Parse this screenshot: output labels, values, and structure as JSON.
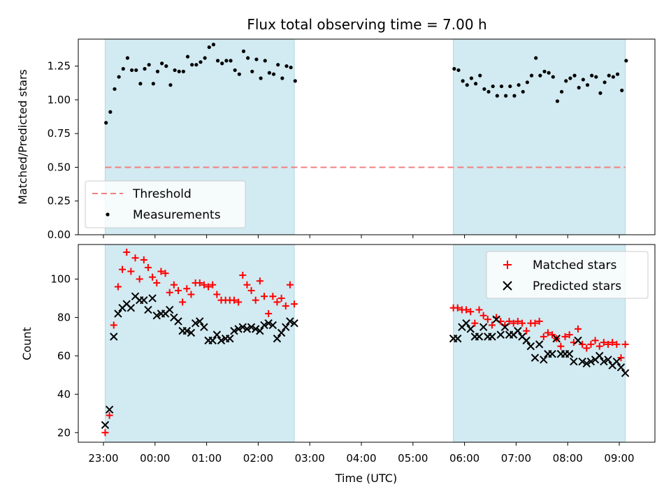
{
  "title": "Flux total observing time = 7.00 h",
  "xlabel": "Time (UTC)",
  "x_tick_labels": [
    "23:00",
    "00:00",
    "01:00",
    "02:00",
    "03:00",
    "04:00",
    "05:00",
    "06:00",
    "07:00",
    "08:00",
    "09:00"
  ],
  "colors": {
    "shade": "#add8e6",
    "threshold": "#f08080",
    "matched": "#ff0000",
    "predicted": "#000000",
    "measurements": "#000000"
  },
  "chart_data": [
    {
      "type": "scatter",
      "ylabel": "Matched/Predicted stars",
      "y_ticks": [
        "0.00",
        "0.25",
        "0.50",
        "0.75",
        "1.00",
        "1.25"
      ],
      "ylim": [
        0,
        1.45
      ],
      "shaded_time_ranges": [
        [
          "23:02",
          "02:42"
        ],
        [
          "05:47",
          "09:07"
        ]
      ],
      "threshold": {
        "name": "Threshold",
        "value": 0.5
      },
      "legend": [
        "Threshold",
        "Measurements"
      ],
      "legend_position": "lower-left",
      "series": [
        {
          "name": "Measurements",
          "points": [
            [
              "23:03",
              0.83
            ],
            [
              "23:08",
              0.91
            ],
            [
              "23:13",
              1.08
            ],
            [
              "23:18",
              1.17
            ],
            [
              "23:23",
              1.23
            ],
            [
              "23:28",
              1.31
            ],
            [
              "23:33",
              1.22
            ],
            [
              "23:38",
              1.22
            ],
            [
              "23:43",
              1.12
            ],
            [
              "23:48",
              1.23
            ],
            [
              "23:53",
              1.26
            ],
            [
              "23:58",
              1.12
            ],
            [
              "00:03",
              1.21
            ],
            [
              "00:08",
              1.27
            ],
            [
              "00:13",
              1.25
            ],
            [
              "00:18",
              1.11
            ],
            [
              "00:23",
              1.22
            ],
            [
              "00:28",
              1.21
            ],
            [
              "00:33",
              1.21
            ],
            [
              "00:38",
              1.32
            ],
            [
              "00:43",
              1.26
            ],
            [
              "00:48",
              1.26
            ],
            [
              "00:53",
              1.28
            ],
            [
              "00:58",
              1.31
            ],
            [
              "01:03",
              1.39
            ],
            [
              "01:08",
              1.41
            ],
            [
              "01:13",
              1.29
            ],
            [
              "01:18",
              1.27
            ],
            [
              "01:23",
              1.29
            ],
            [
              "01:28",
              1.29
            ],
            [
              "01:33",
              1.22
            ],
            [
              "01:38",
              1.19
            ],
            [
              "01:43",
              1.36
            ],
            [
              "01:48",
              1.31
            ],
            [
              "01:53",
              1.21
            ],
            [
              "01:58",
              1.3
            ],
            [
              "02:03",
              1.16
            ],
            [
              "02:08",
              1.29
            ],
            [
              "02:13",
              1.2
            ],
            [
              "02:18",
              1.19
            ],
            [
              "02:23",
              1.26
            ],
            [
              "02:28",
              1.16
            ],
            [
              "02:33",
              1.25
            ],
            [
              "02:38",
              1.24
            ],
            [
              "02:43",
              1.14
            ],
            [
              "05:48",
              1.23
            ],
            [
              "05:53",
              1.22
            ],
            [
              "05:58",
              1.14
            ],
            [
              "06:03",
              1.11
            ],
            [
              "06:08",
              1.16
            ],
            [
              "06:13",
              1.12
            ],
            [
              "06:18",
              1.18
            ],
            [
              "06:23",
              1.08
            ],
            [
              "06:28",
              1.06
            ],
            [
              "06:33",
              1.1
            ],
            [
              "06:38",
              1.03
            ],
            [
              "06:43",
              1.1
            ],
            [
              "06:48",
              1.03
            ],
            [
              "06:53",
              1.1
            ],
            [
              "06:58",
              1.03
            ],
            [
              "07:03",
              1.11
            ],
            [
              "07:08",
              1.06
            ],
            [
              "07:13",
              1.13
            ],
            [
              "07:18",
              1.18
            ],
            [
              "07:23",
              1.31
            ],
            [
              "07:28",
              1.18
            ],
            [
              "07:33",
              1.21
            ],
            [
              "07:38",
              1.2
            ],
            [
              "07:43",
              1.17
            ],
            [
              "07:48",
              0.99
            ],
            [
              "07:53",
              1.06
            ],
            [
              "07:58",
              1.14
            ],
            [
              "08:03",
              1.16
            ],
            [
              "08:08",
              1.18
            ],
            [
              "08:13",
              1.09
            ],
            [
              "08:18",
              1.15
            ],
            [
              "08:23",
              1.11
            ],
            [
              "08:28",
              1.18
            ],
            [
              "08:33",
              1.17
            ],
            [
              "08:38",
              1.05
            ],
            [
              "08:43",
              1.13
            ],
            [
              "08:48",
              1.18
            ],
            [
              "08:53",
              1.17
            ],
            [
              "08:58",
              1.19
            ],
            [
              "09:03",
              1.07
            ],
            [
              "09:08",
              1.29
            ]
          ]
        }
      ]
    },
    {
      "type": "scatter",
      "ylabel": "Count",
      "y_ticks": [
        "20",
        "40",
        "60",
        "80",
        "100"
      ],
      "ylim": [
        15,
        118
      ],
      "shaded_time_ranges": [
        [
          "23:02",
          "02:42"
        ],
        [
          "05:47",
          "09:07"
        ]
      ],
      "legend": [
        "Matched stars",
        "Predicted stars"
      ],
      "legend_position": "upper-right",
      "series": [
        {
          "name": "Matched stars",
          "points": [
            [
              "23:02",
              20
            ],
            [
              "23:07",
              29
            ],
            [
              "23:12",
              76
            ],
            [
              "23:17",
              96
            ],
            [
              "23:22",
              105
            ],
            [
              "23:27",
              114
            ],
            [
              "23:32",
              104
            ],
            [
              "23:37",
              111
            ],
            [
              "23:42",
              100
            ],
            [
              "23:47",
              110
            ],
            [
              "23:52",
              106
            ],
            [
              "23:57",
              101
            ],
            [
              "00:02",
              98
            ],
            [
              "00:07",
              104
            ],
            [
              "00:12",
              103
            ],
            [
              "00:17",
              93
            ],
            [
              "00:22",
              97
            ],
            [
              "00:27",
              94
            ],
            [
              "00:32",
              88
            ],
            [
              "00:37",
              95
            ],
            [
              "00:42",
              92
            ],
            [
              "00:47",
              98
            ],
            [
              "00:52",
              98
            ],
            [
              "00:57",
              97
            ],
            [
              "01:02",
              96
            ],
            [
              "01:07",
              97
            ],
            [
              "01:12",
              92
            ],
            [
              "01:17",
              89
            ],
            [
              "01:22",
              89
            ],
            [
              "01:27",
              89
            ],
            [
              "01:32",
              89
            ],
            [
              "01:37",
              88
            ],
            [
              "01:42",
              102
            ],
            [
              "01:47",
              97
            ],
            [
              "01:52",
              94
            ],
            [
              "01:57",
              89
            ],
            [
              "02:02",
              99
            ],
            [
              "02:07",
              91
            ],
            [
              "02:12",
              82
            ],
            [
              "02:17",
              91
            ],
            [
              "02:22",
              88
            ],
            [
              "02:27",
              90
            ],
            [
              "02:32",
              86
            ],
            [
              "02:37",
              97
            ],
            [
              "02:42",
              87
            ],
            [
              "05:47",
              85
            ],
            [
              "05:52",
              85
            ],
            [
              "05:57",
              84
            ],
            [
              "06:02",
              84
            ],
            [
              "06:07",
              83
            ],
            [
              "06:12",
              77
            ],
            [
              "06:17",
              84
            ],
            [
              "06:22",
              81
            ],
            [
              "06:27",
              79
            ],
            [
              "06:32",
              76
            ],
            [
              "06:37",
              80
            ],
            [
              "06:42",
              78
            ],
            [
              "06:47",
              76
            ],
            [
              "06:52",
              78
            ],
            [
              "06:57",
              77
            ],
            [
              "07:02",
              78
            ],
            [
              "07:07",
              77
            ],
            [
              "07:12",
              73
            ],
            [
              "07:17",
              77
            ],
            [
              "07:22",
              77
            ],
            [
              "07:27",
              78
            ],
            [
              "07:32",
              70
            ],
            [
              "07:37",
              72
            ],
            [
              "07:42",
              71
            ],
            [
              "07:47",
              69
            ],
            [
              "07:52",
              65
            ],
            [
              "07:57",
              70
            ],
            [
              "08:02",
              71
            ],
            [
              "08:07",
              67
            ],
            [
              "08:12",
              74
            ],
            [
              "08:17",
              66
            ],
            [
              "08:22",
              64
            ],
            [
              "08:27",
              66
            ],
            [
              "08:32",
              68
            ],
            [
              "08:37",
              65
            ],
            [
              "08:42",
              67
            ],
            [
              "08:47",
              66
            ],
            [
              "08:52",
              67
            ],
            [
              "08:57",
              66
            ],
            [
              "09:02",
              59
            ],
            [
              "09:07",
              66
            ]
          ]
        },
        {
          "name": "Predicted stars",
          "points": [
            [
              "23:02",
              24
            ],
            [
              "23:07",
              32
            ],
            [
              "23:12",
              70
            ],
            [
              "23:17",
              82
            ],
            [
              "23:22",
              85
            ],
            [
              "23:27",
              87
            ],
            [
              "23:32",
              85
            ],
            [
              "23:37",
              91
            ],
            [
              "23:42",
              89
            ],
            [
              "23:47",
              89
            ],
            [
              "23:52",
              84
            ],
            [
              "23:57",
              90
            ],
            [
              "00:02",
              81
            ],
            [
              "00:07",
              82
            ],
            [
              "00:12",
              82
            ],
            [
              "00:17",
              84
            ],
            [
              "00:22",
              80
            ],
            [
              "00:27",
              78
            ],
            [
              "00:32",
              73
            ],
            [
              "00:37",
              73
            ],
            [
              "00:42",
              72
            ],
            [
              "00:47",
              77
            ],
            [
              "00:52",
              78
            ],
            [
              "00:57",
              75
            ],
            [
              "01:02",
              68
            ],
            [
              "01:07",
              68
            ],
            [
              "01:12",
              71
            ],
            [
              "01:17",
              68
            ],
            [
              "01:22",
              69
            ],
            [
              "01:27",
              69
            ],
            [
              "01:32",
              73
            ],
            [
              "01:37",
              74
            ],
            [
              "01:42",
              75
            ],
            [
              "01:47",
              74
            ],
            [
              "01:52",
              75
            ],
            [
              "01:57",
              74
            ],
            [
              "02:02",
              73
            ],
            [
              "02:07",
              76
            ],
            [
              "02:12",
              77
            ],
            [
              "02:17",
              76
            ],
            [
              "02:22",
              69
            ],
            [
              "02:27",
              72
            ],
            [
              "02:32",
              75
            ],
            [
              "02:37",
              78
            ],
            [
              "02:42",
              77
            ],
            [
              "05:47",
              69
            ],
            [
              "05:52",
              69
            ],
            [
              "05:57",
              75
            ],
            [
              "06:02",
              77
            ],
            [
              "06:07",
              74
            ],
            [
              "06:12",
              70
            ],
            [
              "06:17",
              70
            ],
            [
              "06:22",
              75
            ],
            [
              "06:27",
              70
            ],
            [
              "06:32",
              70
            ],
            [
              "06:37",
              79
            ],
            [
              "06:42",
              71
            ],
            [
              "06:47",
              75
            ],
            [
              "06:52",
              71
            ],
            [
              "06:57",
              71
            ],
            [
              "07:02",
              73
            ],
            [
              "07:07",
              70
            ],
            [
              "07:12",
              68
            ],
            [
              "07:17",
              65
            ],
            [
              "07:22",
              59
            ],
            [
              "07:27",
              66
            ],
            [
              "07:32",
              58
            ],
            [
              "07:37",
              61
            ],
            [
              "07:42",
              61
            ],
            [
              "07:47",
              69
            ],
            [
              "07:52",
              61
            ],
            [
              "07:57",
              61
            ],
            [
              "08:02",
              61
            ],
            [
              "08:07",
              57
            ],
            [
              "08:12",
              68
            ],
            [
              "08:17",
              57
            ],
            [
              "08:22",
              56
            ],
            [
              "08:27",
              57
            ],
            [
              "08:32",
              58
            ],
            [
              "08:37",
              60
            ],
            [
              "08:42",
              57
            ],
            [
              "08:47",
              58
            ],
            [
              "08:52",
              55
            ],
            [
              "08:57",
              57
            ],
            [
              "09:02",
              54
            ],
            [
              "09:07",
              51
            ]
          ]
        }
      ]
    }
  ]
}
